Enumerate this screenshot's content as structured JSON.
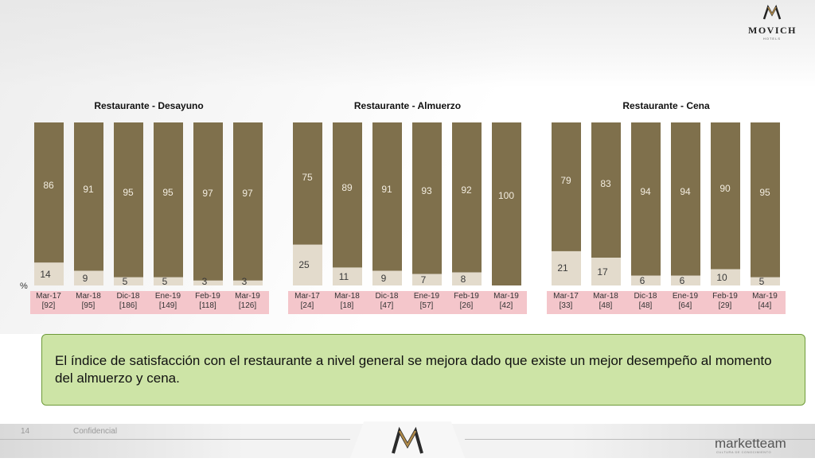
{
  "header": {
    "logo_word": "MOVICH",
    "logo_sub": "HOTELS"
  },
  "percent_sign": "%",
  "chart_data": [
    {
      "type": "bar",
      "title": "Restaurante - Desayuno",
      "categories": [
        "Mar-17",
        "Mar-18",
        "Dic-18",
        "Ene-19",
        "Feb-19",
        "Mar-19"
      ],
      "bases": [
        "[92]",
        "[95]",
        "[186]",
        "[149]",
        "[118]",
        "[126]"
      ],
      "stacked": true,
      "series": [
        {
          "values": [
            86,
            91,
            95,
            95,
            97,
            97
          ]
        },
        {
          "values": [
            14,
            9,
            5,
            5,
            3,
            3
          ]
        }
      ],
      "ylim": [
        0,
        100
      ]
    },
    {
      "type": "bar",
      "title": "Restaurante - Almuerzo",
      "categories": [
        "Mar-17",
        "Mar-18",
        "Dic-18",
        "Ene-19",
        "Feb-19",
        "Mar-19"
      ],
      "bases": [
        "[24]",
        "[18]",
        "[47]",
        "[57]",
        "[26]",
        "[42]"
      ],
      "stacked": true,
      "series": [
        {
          "values": [
            75,
            89,
            91,
            93,
            92,
            100
          ]
        },
        {
          "values": [
            25,
            11,
            9,
            7,
            8,
            null
          ]
        }
      ],
      "ylim": [
        0,
        100
      ]
    },
    {
      "type": "bar",
      "title": "Restaurante - Cena",
      "categories": [
        "Mar-17",
        "Mar-18",
        "Dic-18",
        "Ene-19",
        "Feb-19",
        "Mar-19"
      ],
      "bases": [
        "[33]",
        "[48]",
        "[48]",
        "[64]",
        "[29]",
        "[44]"
      ],
      "stacked": true,
      "series": [
        {
          "values": [
            79,
            83,
            94,
            94,
            90,
            95
          ]
        },
        {
          "values": [
            21,
            17,
            6,
            6,
            10,
            5
          ]
        }
      ],
      "ylim": [
        0,
        100
      ]
    }
  ],
  "colors": {
    "top_segment": "#7f704c",
    "bottom_segment": "#e3dbcc",
    "top_label": "#f2ecdf",
    "bottom_label": "#3a3a3a",
    "category_band": "#f4c6cb"
  },
  "callout": {
    "text": "El índice de satisfacción con el restaurante a nivel general se mejora dado que existe un mejor desempeño al momento del almuerzo y cena."
  },
  "footer": {
    "page_number": "14",
    "confidential": "Confidencial",
    "brand": "marketteam",
    "brand_tagline": "CULTURA DE CONOCIMIENTO"
  }
}
